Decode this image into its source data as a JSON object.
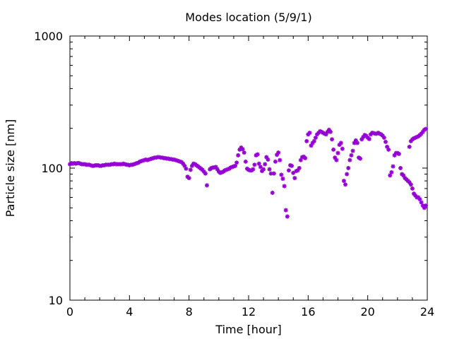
{
  "chart_data": {
    "type": "scatter",
    "title": "Modes location (5/9/1)",
    "xlabel": "Time [hour]",
    "ylabel": "Particle size [nm]",
    "xlim": [
      0,
      24
    ],
    "ylim": [
      10,
      1000
    ],
    "yscale": "log",
    "xticks": [
      "0",
      "4",
      "8",
      "12",
      "16",
      "20",
      "24"
    ],
    "yticks": [
      "10",
      "100",
      "1000"
    ],
    "grid": false,
    "marker_color": "#9400d3",
    "series": [
      {
        "points": [
          [
            0.0,
            107
          ],
          [
            0.1,
            109
          ],
          [
            0.2,
            108
          ],
          [
            0.3,
            109
          ],
          [
            0.4,
            108
          ],
          [
            0.5,
            109
          ],
          [
            0.6,
            109
          ],
          [
            0.7,
            108
          ],
          [
            0.8,
            107
          ],
          [
            0.9,
            107
          ],
          [
            1.0,
            107
          ],
          [
            1.1,
            106
          ],
          [
            1.2,
            106
          ],
          [
            1.3,
            106
          ],
          [
            1.4,
            105
          ],
          [
            1.5,
            104
          ],
          [
            1.6,
            104
          ],
          [
            1.7,
            105
          ],
          [
            1.8,
            105
          ],
          [
            1.9,
            105
          ],
          [
            2.0,
            104
          ],
          [
            2.1,
            104
          ],
          [
            2.2,
            105
          ],
          [
            2.3,
            105
          ],
          [
            2.4,
            106
          ],
          [
            2.5,
            106
          ],
          [
            2.6,
            106
          ],
          [
            2.7,
            106
          ],
          [
            2.8,
            107
          ],
          [
            2.9,
            107
          ],
          [
            3.0,
            108
          ],
          [
            3.1,
            107
          ],
          [
            3.2,
            107
          ],
          [
            3.3,
            107
          ],
          [
            3.4,
            107
          ],
          [
            3.5,
            107
          ],
          [
            3.6,
            108
          ],
          [
            3.7,
            107
          ],
          [
            3.8,
            106
          ],
          [
            3.9,
            106
          ],
          [
            4.0,
            105
          ],
          [
            4.1,
            106
          ],
          [
            4.2,
            106
          ],
          [
            4.3,
            107
          ],
          [
            4.4,
            108
          ],
          [
            4.5,
            109
          ],
          [
            4.6,
            110
          ],
          [
            4.7,
            112
          ],
          [
            4.8,
            113
          ],
          [
            4.9,
            114
          ],
          [
            5.0,
            115
          ],
          [
            5.1,
            116
          ],
          [
            5.2,
            115
          ],
          [
            5.3,
            116
          ],
          [
            5.4,
            117
          ],
          [
            5.5,
            118
          ],
          [
            5.6,
            119
          ],
          [
            5.7,
            120
          ],
          [
            5.8,
            120
          ],
          [
            5.9,
            121
          ],
          [
            6.0,
            121
          ],
          [
            6.1,
            120
          ],
          [
            6.2,
            120
          ],
          [
            6.3,
            119
          ],
          [
            6.4,
            119
          ],
          [
            6.5,
            118
          ],
          [
            6.6,
            118
          ],
          [
            6.7,
            117
          ],
          [
            6.8,
            117
          ],
          [
            6.9,
            116
          ],
          [
            7.0,
            116
          ],
          [
            7.1,
            115
          ],
          [
            7.2,
            114
          ],
          [
            7.3,
            113
          ],
          [
            7.4,
            112
          ],
          [
            7.5,
            111
          ],
          [
            7.6,
            108
          ],
          [
            7.7,
            104
          ],
          [
            7.8,
            99
          ],
          [
            7.9,
            86
          ],
          [
            8.0,
            84
          ],
          [
            8.1,
            97
          ],
          [
            8.2,
            104
          ],
          [
            8.3,
            108
          ],
          [
            8.4,
            107
          ],
          [
            8.5,
            105
          ],
          [
            8.6,
            103
          ],
          [
            8.7,
            101
          ],
          [
            8.8,
            99
          ],
          [
            8.9,
            97
          ],
          [
            9.0,
            94
          ],
          [
            9.1,
            91
          ],
          [
            9.2,
            74
          ],
          [
            9.4,
            98
          ],
          [
            9.5,
            100
          ],
          [
            9.6,
            101
          ],
          [
            9.7,
            101
          ],
          [
            9.8,
            102
          ],
          [
            9.9,
            98
          ],
          [
            10.0,
            94
          ],
          [
            10.1,
            92
          ],
          [
            10.2,
            93
          ],
          [
            10.3,
            94
          ],
          [
            10.4,
            96
          ],
          [
            10.5,
            97
          ],
          [
            10.6,
            98
          ],
          [
            10.7,
            99
          ],
          [
            10.8,
            101
          ],
          [
            10.9,
            102
          ],
          [
            11.0,
            103
          ],
          [
            11.1,
            104
          ],
          [
            11.2,
            110
          ],
          [
            11.3,
            125
          ],
          [
            11.4,
            138
          ],
          [
            11.5,
            143
          ],
          [
            11.6,
            139
          ],
          [
            11.7,
            131
          ],
          [
            11.8,
            112
          ],
          [
            11.9,
            99
          ],
          [
            12.0,
            97
          ],
          [
            12.1,
            96
          ],
          [
            12.2,
            96
          ],
          [
            12.3,
            98
          ],
          [
            12.4,
            106
          ],
          [
            12.5,
            125
          ],
          [
            12.6,
            127
          ],
          [
            12.7,
            108
          ],
          [
            12.8,
            102
          ],
          [
            12.9,
            95
          ],
          [
            13.0,
            98
          ],
          [
            13.1,
            107
          ],
          [
            13.2,
            121
          ],
          [
            13.3,
            116
          ],
          [
            13.4,
            98
          ],
          [
            13.5,
            91
          ],
          [
            13.6,
            65
          ],
          [
            13.7,
            91
          ],
          [
            13.8,
            112
          ],
          [
            13.9,
            126
          ],
          [
            14.0,
            131
          ],
          [
            14.1,
            115
          ],
          [
            14.2,
            89
          ],
          [
            14.3,
            83
          ],
          [
            14.4,
            73
          ],
          [
            14.5,
            48
          ],
          [
            14.6,
            43
          ],
          [
            14.7,
            96
          ],
          [
            14.8,
            105
          ],
          [
            14.9,
            104
          ],
          [
            15.0,
            92
          ],
          [
            15.1,
            84
          ],
          [
            15.2,
            95
          ],
          [
            15.3,
            96
          ],
          [
            15.4,
            100
          ],
          [
            15.5,
            115
          ],
          [
            15.6,
            121
          ],
          [
            15.7,
            122
          ],
          [
            15.8,
            119
          ],
          [
            15.9,
            160
          ],
          [
            16.0,
            180
          ],
          [
            16.1,
            185
          ],
          [
            16.2,
            148
          ],
          [
            16.3,
            155
          ],
          [
            16.4,
            160
          ],
          [
            16.5,
            170
          ],
          [
            16.6,
            180
          ],
          [
            16.7,
            185
          ],
          [
            16.8,
            190
          ],
          [
            16.9,
            188
          ],
          [
            17.0,
            185
          ],
          [
            17.1,
            182
          ],
          [
            17.2,
            180
          ],
          [
            17.3,
            188
          ],
          [
            17.4,
            195
          ],
          [
            17.5,
            188
          ],
          [
            17.6,
            165
          ],
          [
            17.7,
            138
          ],
          [
            17.8,
            120
          ],
          [
            17.9,
            115
          ],
          [
            18.0,
            130
          ],
          [
            18.1,
            150
          ],
          [
            18.2,
            155
          ],
          [
            18.3,
            140
          ],
          [
            18.4,
            80
          ],
          [
            18.5,
            75
          ],
          [
            18.6,
            90
          ],
          [
            18.7,
            100
          ],
          [
            18.8,
            115
          ],
          [
            18.9,
            125
          ],
          [
            19.0,
            135
          ],
          [
            19.1,
            155
          ],
          [
            19.2,
            162
          ],
          [
            19.3,
            155
          ],
          [
            19.4,
            120
          ],
          [
            19.5,
            118
          ],
          [
            19.6,
            165
          ],
          [
            19.7,
            172
          ],
          [
            19.8,
            178
          ],
          [
            19.9,
            175
          ],
          [
            20.0,
            170
          ],
          [
            20.1,
            166
          ],
          [
            20.2,
            180
          ],
          [
            20.3,
            185
          ],
          [
            20.4,
            184
          ],
          [
            20.5,
            182
          ],
          [
            20.6,
            182
          ],
          [
            20.7,
            185
          ],
          [
            20.8,
            182
          ],
          [
            20.9,
            180
          ],
          [
            21.0,
            176
          ],
          [
            21.1,
            170
          ],
          [
            21.2,
            158
          ],
          [
            21.3,
            145
          ],
          [
            21.4,
            138
          ],
          [
            21.5,
            88
          ],
          [
            21.6,
            93
          ],
          [
            21.7,
            103
          ],
          [
            21.8,
            125
          ],
          [
            21.9,
            130
          ],
          [
            22.0,
            130
          ],
          [
            22.1,
            128
          ],
          [
            22.2,
            100
          ],
          [
            22.3,
            90
          ],
          [
            22.4,
            88
          ],
          [
            22.5,
            84
          ],
          [
            22.6,
            82
          ],
          [
            22.7,
            80
          ],
          [
            22.8,
            78
          ],
          [
            22.9,
            75
          ],
          [
            23.0,
            70
          ],
          [
            23.1,
            64
          ],
          [
            23.2,
            62
          ],
          [
            23.3,
            60
          ],
          [
            23.4,
            60
          ],
          [
            23.5,
            58
          ],
          [
            23.6,
            55
          ],
          [
            23.7,
            52
          ],
          [
            23.8,
            50
          ],
          [
            23.9,
            52
          ],
          [
            22.8,
            145
          ],
          [
            22.9,
            160
          ],
          [
            23.0,
            165
          ],
          [
            23.1,
            168
          ],
          [
            23.2,
            170
          ],
          [
            23.3,
            172
          ],
          [
            23.4,
            174
          ],
          [
            23.5,
            178
          ],
          [
            23.6,
            182
          ],
          [
            23.7,
            188
          ],
          [
            23.8,
            195
          ],
          [
            23.9,
            198
          ]
        ]
      }
    ]
  }
}
